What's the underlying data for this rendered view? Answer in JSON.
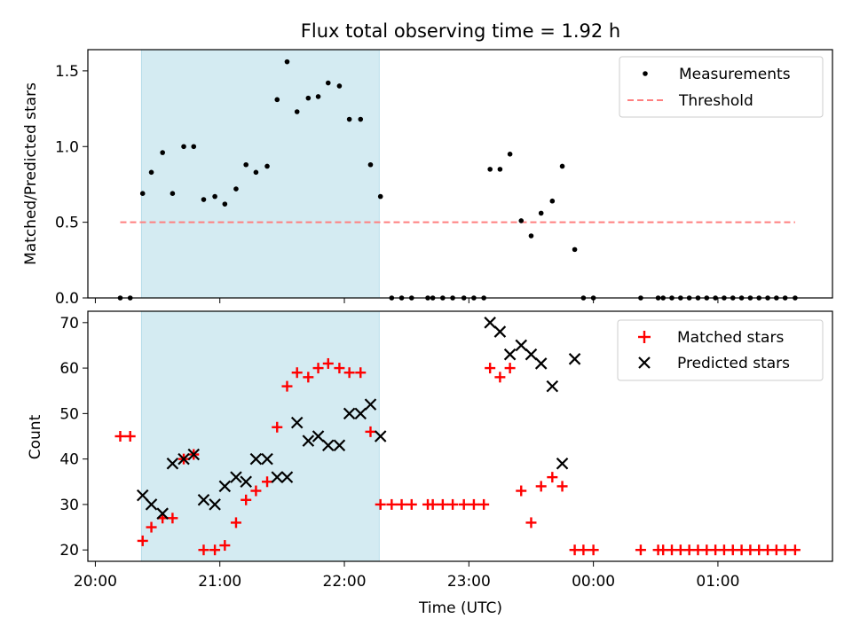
{
  "chart_data": [
    {
      "type": "scatter",
      "title": "Flux total observing time = 1.92 h",
      "xlabel": "",
      "ylabel": "Matched/Predicted stars",
      "ylim": [
        0,
        1.64
      ],
      "xlim_hours": [
        19.94,
        25.92
      ],
      "shaded_interval_hours": [
        20.37,
        22.28
      ],
      "shade_color": "#add8e6",
      "y_ticks": [
        {
          "v": 0.0,
          "label": "0.0"
        },
        {
          "v": 0.5,
          "label": "0.5"
        },
        {
          "v": 1.0,
          "label": "1.0"
        },
        {
          "v": 1.5,
          "label": "1.5"
        }
      ],
      "x_ticks_hours": [
        20,
        21,
        22,
        23,
        24,
        25
      ],
      "legend_position": "top-right",
      "threshold": {
        "name": "Threshold",
        "value": 0.5,
        "x_range_hours": [
          20.2,
          25.62
        ],
        "color": "#ff7f7f"
      },
      "series": [
        {
          "name": "Measurements",
          "color": "#000000",
          "points": [
            [
              20.2,
              0
            ],
            [
              20.28,
              0
            ],
            [
              20.38,
              0.69
            ],
            [
              20.45,
              0.83
            ],
            [
              20.54,
              0.96
            ],
            [
              20.62,
              0.69
            ],
            [
              20.71,
              1.0
            ],
            [
              20.79,
              1.0
            ],
            [
              20.87,
              0.65
            ],
            [
              20.96,
              0.67
            ],
            [
              21.04,
              0.62
            ],
            [
              21.13,
              0.72
            ],
            [
              21.21,
              0.88
            ],
            [
              21.29,
              0.83
            ],
            [
              21.38,
              0.87
            ],
            [
              21.46,
              1.31
            ],
            [
              21.54,
              1.56
            ],
            [
              21.62,
              1.23
            ],
            [
              21.71,
              1.32
            ],
            [
              21.79,
              1.33
            ],
            [
              21.87,
              1.42
            ],
            [
              21.96,
              1.4
            ],
            [
              22.04,
              1.18
            ],
            [
              22.13,
              1.18
            ],
            [
              22.21,
              0.88
            ],
            [
              22.29,
              0.67
            ],
            [
              22.38,
              0
            ],
            [
              22.46,
              0
            ],
            [
              22.54,
              0
            ],
            [
              22.67,
              0
            ],
            [
              22.71,
              0
            ],
            [
              22.79,
              0
            ],
            [
              22.87,
              0
            ],
            [
              22.96,
              0
            ],
            [
              23.04,
              0
            ],
            [
              23.12,
              0
            ],
            [
              23.17,
              0.85
            ],
            [
              23.25,
              0.85
            ],
            [
              23.33,
              0.95
            ],
            [
              23.42,
              0.51
            ],
            [
              23.5,
              0.41
            ],
            [
              23.58,
              0.56
            ],
            [
              23.67,
              0.64
            ],
            [
              23.75,
              0.87
            ],
            [
              23.85,
              0.32
            ],
            [
              23.92,
              0
            ],
            [
              24.0,
              0
            ],
            [
              24.38,
              0
            ],
            [
              24.52,
              0
            ],
            [
              24.56,
              0
            ],
            [
              24.63,
              0
            ],
            [
              24.7,
              0
            ],
            [
              24.77,
              0
            ],
            [
              24.84,
              0
            ],
            [
              24.91,
              0
            ],
            [
              24.98,
              0
            ],
            [
              25.05,
              0
            ],
            [
              25.12,
              0
            ],
            [
              25.19,
              0
            ],
            [
              25.26,
              0
            ],
            [
              25.33,
              0
            ],
            [
              25.4,
              0
            ],
            [
              25.47,
              0
            ],
            [
              25.54,
              0
            ],
            [
              25.62,
              0
            ]
          ]
        }
      ]
    },
    {
      "type": "scatter",
      "title": "",
      "xlabel": "Time (UTC)",
      "ylabel": "Count",
      "ylim": [
        17.5,
        72.5
      ],
      "xlim_hours": [
        19.94,
        25.92
      ],
      "shaded_interval_hours": [
        20.37,
        22.28
      ],
      "shade_color": "#add8e6",
      "y_ticks": [
        {
          "v": 20,
          "label": "20"
        },
        {
          "v": 30,
          "label": "30"
        },
        {
          "v": 40,
          "label": "40"
        },
        {
          "v": 50,
          "label": "50"
        },
        {
          "v": 60,
          "label": "60"
        },
        {
          "v": 70,
          "label": "70"
        }
      ],
      "x_ticks": [
        {
          "hour": 20,
          "label": "20:00"
        },
        {
          "hour": 21,
          "label": "21:00"
        },
        {
          "hour": 22,
          "label": "22:00"
        },
        {
          "hour": 23,
          "label": "23:00"
        },
        {
          "hour": 24,
          "label": "00:00"
        },
        {
          "hour": 25,
          "label": "01:00"
        }
      ],
      "legend_position": "top-right",
      "series": [
        {
          "name": "Matched stars",
          "marker": "plus",
          "color": "#ff0000",
          "points": [
            [
              20.2,
              45
            ],
            [
              20.28,
              45
            ],
            [
              20.38,
              22
            ],
            [
              20.45,
              25
            ],
            [
              20.54,
              27
            ],
            [
              20.62,
              27
            ],
            [
              20.71,
              40
            ],
            [
              20.79,
              41
            ],
            [
              20.87,
              20
            ],
            [
              20.96,
              20
            ],
            [
              21.04,
              21
            ],
            [
              21.13,
              26
            ],
            [
              21.21,
              31
            ],
            [
              21.29,
              33
            ],
            [
              21.38,
              35
            ],
            [
              21.46,
              47
            ],
            [
              21.54,
              56
            ],
            [
              21.62,
              59
            ],
            [
              21.71,
              58
            ],
            [
              21.79,
              60
            ],
            [
              21.87,
              61
            ],
            [
              21.96,
              60
            ],
            [
              22.04,
              59
            ],
            [
              22.13,
              59
            ],
            [
              22.21,
              46
            ],
            [
              22.29,
              30
            ],
            [
              22.38,
              30
            ],
            [
              22.46,
              30
            ],
            [
              22.54,
              30
            ],
            [
              22.67,
              30
            ],
            [
              22.71,
              30
            ],
            [
              22.79,
              30
            ],
            [
              22.87,
              30
            ],
            [
              22.96,
              30
            ],
            [
              23.04,
              30
            ],
            [
              23.12,
              30
            ],
            [
              23.17,
              60
            ],
            [
              23.25,
              58
            ],
            [
              23.33,
              60
            ],
            [
              23.42,
              33
            ],
            [
              23.5,
              26
            ],
            [
              23.58,
              34
            ],
            [
              23.67,
              36
            ],
            [
              23.75,
              34
            ],
            [
              23.85,
              20
            ],
            [
              23.92,
              20
            ],
            [
              24.0,
              20
            ],
            [
              24.38,
              20
            ],
            [
              24.52,
              20
            ],
            [
              24.56,
              20
            ],
            [
              24.63,
              20
            ],
            [
              24.7,
              20
            ],
            [
              24.77,
              20
            ],
            [
              24.84,
              20
            ],
            [
              24.91,
              20
            ],
            [
              24.98,
              20
            ],
            [
              25.05,
              20
            ],
            [
              25.12,
              20
            ],
            [
              25.19,
              20
            ],
            [
              25.26,
              20
            ],
            [
              25.33,
              20
            ],
            [
              25.4,
              20
            ],
            [
              25.47,
              20
            ],
            [
              25.54,
              20
            ],
            [
              25.62,
              20
            ]
          ]
        },
        {
          "name": "Predicted stars",
          "marker": "x",
          "color": "#000000",
          "points": [
            [
              20.38,
              32
            ],
            [
              20.45,
              30
            ],
            [
              20.54,
              28
            ],
            [
              20.62,
              39
            ],
            [
              20.71,
              40
            ],
            [
              20.79,
              41
            ],
            [
              20.87,
              31
            ],
            [
              20.96,
              30
            ],
            [
              21.04,
              34
            ],
            [
              21.13,
              36
            ],
            [
              21.21,
              35
            ],
            [
              21.29,
              40
            ],
            [
              21.38,
              40
            ],
            [
              21.46,
              36
            ],
            [
              21.54,
              36
            ],
            [
              21.62,
              48
            ],
            [
              21.71,
              44
            ],
            [
              21.79,
              45
            ],
            [
              21.87,
              43
            ],
            [
              21.96,
              43
            ],
            [
              22.04,
              50
            ],
            [
              22.13,
              50
            ],
            [
              22.21,
              52
            ],
            [
              22.29,
              45
            ],
            [
              23.17,
              70
            ],
            [
              23.25,
              68
            ],
            [
              23.33,
              63
            ],
            [
              23.42,
              65
            ],
            [
              23.5,
              63
            ],
            [
              23.58,
              61
            ],
            [
              23.67,
              56
            ],
            [
              23.75,
              39
            ],
            [
              23.85,
              62
            ]
          ]
        }
      ]
    }
  ]
}
